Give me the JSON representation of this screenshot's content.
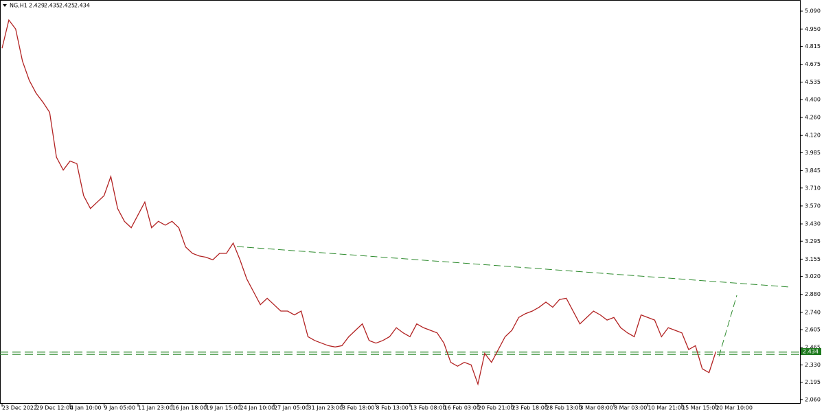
{
  "chart_data": {
    "type": "line",
    "symbol": "NG,H1",
    "ohlc": [
      2.429,
      2.435,
      2.425,
      2.434
    ],
    "color": "#b22222",
    "level_color": "#2e8b2e",
    "levels": [
      2.43,
      2.412
    ],
    "categories": [
      "23 Dec 2022",
      null,
      null,
      null,
      null,
      "29 Dec 12:00",
      null,
      null,
      null,
      null,
      "4 Jan 10:00",
      null,
      null,
      null,
      null,
      "9 Jan 05:00",
      null,
      null,
      null,
      null,
      "11 Jan 23:00",
      null,
      null,
      null,
      null,
      "16 Jan 18:00",
      null,
      null,
      null,
      null,
      "19 Jan 15:00",
      null,
      null,
      null,
      null,
      "24 Jan 10:00",
      null,
      null,
      null,
      null,
      "27 Jan 05:00",
      null,
      null,
      null,
      null,
      "31 Jan 23:00",
      null,
      null,
      null,
      null,
      "3 Feb 18:00",
      null,
      null,
      null,
      null,
      "8 Feb 13:00",
      null,
      null,
      null,
      null,
      "13 Feb 08:00",
      null,
      null,
      null,
      null,
      "16 Feb 03:00",
      null,
      null,
      null,
      null,
      "20 Feb 21:00",
      null,
      null,
      null,
      null,
      "23 Feb 18:00",
      null,
      null,
      null,
      null,
      "28 Feb 13:00",
      null,
      null,
      null,
      null,
      "3 Mar 08:00",
      null,
      null,
      null,
      null,
      "8 Mar 03:00",
      null,
      null,
      null,
      null,
      "10 Mar 21:00",
      null,
      null,
      null,
      null,
      "15 Mar 15:00",
      null,
      null,
      null,
      null,
      "20 Mar 10:00"
    ],
    "values": [
      4.8,
      5.02,
      4.95,
      4.7,
      4.55,
      4.45,
      4.38,
      4.3,
      3.95,
      3.85,
      3.92,
      3.9,
      3.65,
      3.55,
      3.6,
      3.65,
      3.8,
      3.55,
      3.45,
      3.4,
      3.5,
      3.6,
      3.4,
      3.45,
      3.42,
      3.45,
      3.4,
      3.25,
      3.2,
      3.18,
      3.17,
      3.15,
      3.2,
      3.2,
      3.28,
      3.15,
      3.0,
      2.9,
      2.8,
      2.85,
      2.8,
      2.75,
      2.75,
      2.72,
      2.75,
      2.55,
      2.52,
      2.5,
      2.48,
      2.47,
      2.48,
      2.55,
      2.6,
      2.65,
      2.52,
      2.5,
      2.52,
      2.55,
      2.62,
      2.58,
      2.55,
      2.65,
      2.62,
      2.6,
      2.58,
      2.5,
      2.35,
      2.32,
      2.35,
      2.33,
      2.18,
      2.42,
      2.35,
      2.45,
      2.55,
      2.6,
      2.7,
      2.73,
      2.75,
      2.78,
      2.82,
      2.78,
      2.84,
      2.85,
      2.75,
      2.65,
      2.7,
      2.75,
      2.72,
      2.68,
      2.7,
      2.62,
      2.58,
      2.55,
      2.72,
      2.7,
      2.68,
      2.55,
      2.62,
      2.6,
      2.58,
      2.45,
      2.48,
      2.3,
      2.27,
      2.434
    ],
    "ylim": [
      2.027,
      5.171
    ],
    "yticks": [
      {
        "value": 5.09,
        "label": "5.090"
      },
      {
        "value": 4.95,
        "label": "4.950"
      },
      {
        "value": 4.815,
        "label": "4.815"
      },
      {
        "value": 4.675,
        "label": "4.675"
      },
      {
        "value": 4.535,
        "label": "4.535"
      },
      {
        "value": 4.4,
        "label": "4.400"
      },
      {
        "value": 4.26,
        "label": "4.260"
      },
      {
        "value": 4.12,
        "label": "4.120"
      },
      {
        "value": 3.985,
        "label": "3.985"
      },
      {
        "value": 3.845,
        "label": "3.845"
      },
      {
        "value": 3.71,
        "label": "3.710"
      },
      {
        "value": 3.57,
        "label": "3.570"
      },
      {
        "value": 3.43,
        "label": "3.430"
      },
      {
        "value": 3.295,
        "label": "3.295"
      },
      {
        "value": 3.155,
        "label": "3.155"
      },
      {
        "value": 3.02,
        "label": "3.020"
      },
      {
        "value": 2.88,
        "label": "2.880"
      },
      {
        "value": 2.74,
        "label": "2.740"
      },
      {
        "value": 2.605,
        "label": "2.605"
      },
      {
        "value": 2.465,
        "label": "2.465"
      },
      {
        "value": 2.33,
        "label": "2.330"
      },
      {
        "value": 2.195,
        "label": "2.195"
      },
      {
        "value": 2.06,
        "label": "2.060"
      }
    ],
    "grid": false
  }
}
